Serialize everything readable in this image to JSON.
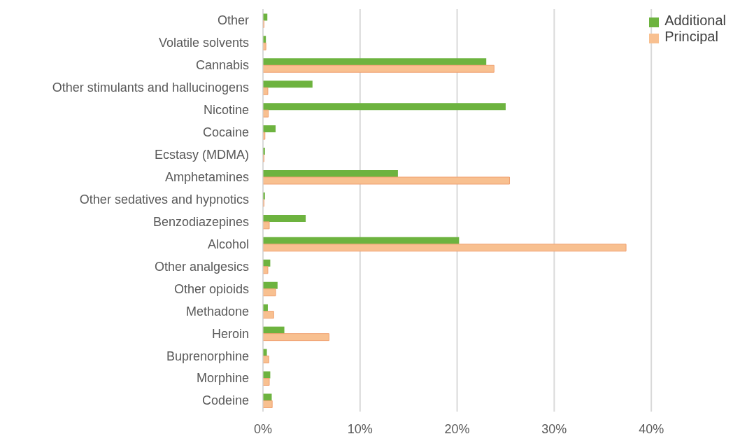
{
  "chart_data": {
    "type": "bar",
    "orientation": "horizontal",
    "categories": [
      "Other",
      "Volatile solvents",
      "Cannabis",
      "Other stimulants and hallucinogens",
      "Nicotine",
      "Cocaine",
      "Ecstasy (MDMA)",
      "Amphetamines",
      "Other sedatives and hypnotics",
      "Benzodiazepines",
      "Alcohol",
      "Other analgesics",
      "Other opioids",
      "Methadone",
      "Heroin",
      "Buprenorphine",
      "Morphine",
      "Codeine"
    ],
    "series": [
      {
        "name": "Additional",
        "color": "#6db33f",
        "values": [
          0.45,
          0.3,
          23.0,
          5.1,
          25.0,
          1.3,
          0.2,
          13.9,
          0.2,
          4.4,
          20.2,
          0.75,
          1.5,
          0.5,
          2.2,
          0.4,
          0.75,
          0.9
        ]
      },
      {
        "name": "Principal",
        "color": "#f8c090",
        "values": [
          0.1,
          0.3,
          23.8,
          0.5,
          0.55,
          0.2,
          0.1,
          25.4,
          0.1,
          0.65,
          37.4,
          0.5,
          1.3,
          1.1,
          6.8,
          0.6,
          0.65,
          0.95
        ]
      }
    ],
    "xlim": [
      0,
      40
    ],
    "xticks": [
      {
        "value": 0,
        "label": "0%"
      },
      {
        "value": 10,
        "label": "10%"
      },
      {
        "value": 20,
        "label": "20%"
      },
      {
        "value": 30,
        "label": "30%"
      },
      {
        "value": 40,
        "label": "40%"
      }
    ],
    "grid": "x",
    "legend": "top right"
  }
}
